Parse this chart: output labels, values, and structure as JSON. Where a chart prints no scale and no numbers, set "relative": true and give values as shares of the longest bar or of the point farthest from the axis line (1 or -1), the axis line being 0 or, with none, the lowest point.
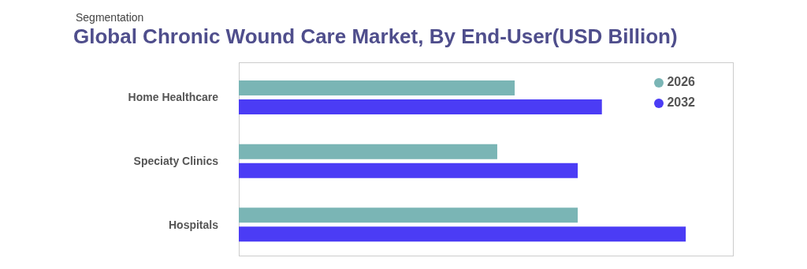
{
  "chart_data": {
    "type": "bar",
    "orientation": "horizontal",
    "relative": true,
    "title": "Global Chronic Wound Care Market, By End-User(USD Billion)",
    "subtitle": "Segmentation",
    "categories": [
      "Home Healthcare",
      "Speciaty Clinics",
      "Hospitals"
    ],
    "series": [
      {
        "name": "2026",
        "color": "#7ab5b5",
        "values": [
          0.617,
          0.578,
          0.758
        ]
      },
      {
        "name": "2032",
        "color": "#4b3cf5",
        "values": [
          0.812,
          0.758,
          1
        ]
      }
    ],
    "legend": "top right",
    "grid": false
  }
}
